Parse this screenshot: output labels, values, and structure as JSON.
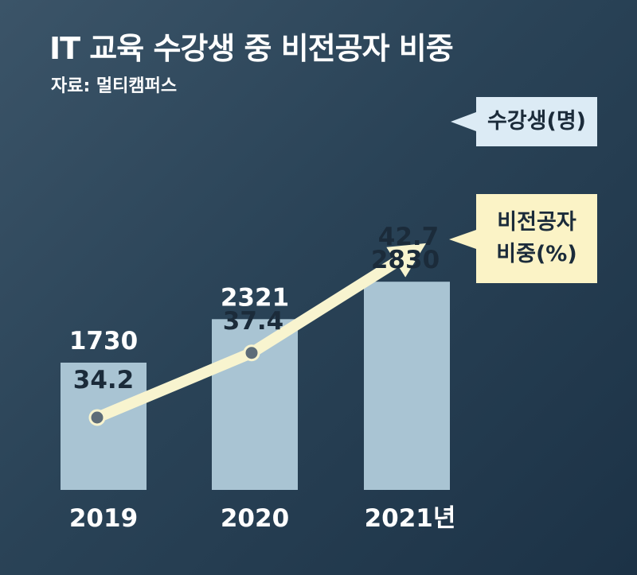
{
  "title": "IT 교육 수강생 중 비전공자 비중",
  "source": "자료: 멀티캠퍼스",
  "chart_data": {
    "type": "bar",
    "title": "IT 교육 수강생 중 비전공자 비중",
    "categories": [
      "2019",
      "2020",
      "2021년"
    ],
    "series": [
      {
        "name": "수강생(명)",
        "type": "bar",
        "values": [
          1730,
          2321,
          2830
        ]
      },
      {
        "name": "비전공자 비중(%)",
        "type": "line",
        "values": [
          34.2,
          37.4,
          42.7
        ]
      }
    ],
    "bar_labels": [
      "1730",
      "2321",
      "2830"
    ],
    "line_labels": [
      "34.2",
      "37.4",
      "42.7"
    ],
    "legend": {
      "count": "수강생(명)",
      "ratio_line1": "비전공자",
      "ratio_line2": "비중(%)"
    },
    "colors": {
      "background_dark": "#1c3246",
      "bar": "#a9c4d3",
      "line": "#f8f4cf",
      "marker": "#5d6c78"
    }
  }
}
